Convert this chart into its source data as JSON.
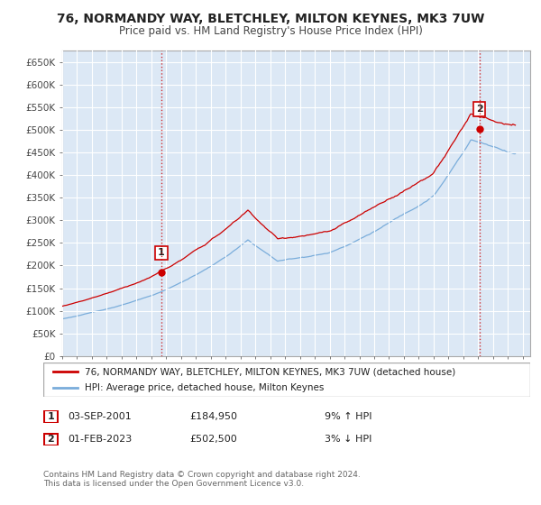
{
  "title": "76, NORMANDY WAY, BLETCHLEY, MILTON KEYNES, MK3 7UW",
  "subtitle": "Price paid vs. HM Land Registry's House Price Index (HPI)",
  "ylabel_ticks": [
    "£0",
    "£50K",
    "£100K",
    "£150K",
    "£200K",
    "£250K",
    "£300K",
    "£350K",
    "£400K",
    "£450K",
    "£500K",
    "£550K",
    "£600K",
    "£650K"
  ],
  "ylim": [
    0,
    675000
  ],
  "ytick_vals": [
    0,
    50000,
    100000,
    150000,
    200000,
    250000,
    300000,
    350000,
    400000,
    450000,
    500000,
    550000,
    600000,
    650000
  ],
  "purchase1": {
    "date_num": 2001.67,
    "price": 184950,
    "label": "1"
  },
  "purchase2": {
    "date_num": 2023.08,
    "price": 502500,
    "label": "2"
  },
  "legend_line1": "76, NORMANDY WAY, BLETCHLEY, MILTON KEYNES, MK3 7UW (detached house)",
  "legend_line2": "HPI: Average price, detached house, Milton Keynes",
  "footer": "Contains HM Land Registry data © Crown copyright and database right 2024.\nThis data is licensed under the Open Government Licence v3.0.",
  "property_color": "#cc0000",
  "hpi_color": "#7aaddb",
  "background_color": "#ffffff",
  "plot_bg_color": "#dce8f5",
  "grid_color": "#ffffff",
  "xmin": 1995,
  "xmax": 2026.5,
  "ann1_date": "03-SEP-2001",
  "ann1_price": "£184,950",
  "ann1_hpi": "9% ↑ HPI",
  "ann2_date": "01-FEB-2023",
  "ann2_price": "£502,500",
  "ann2_hpi": "3% ↓ HPI"
}
